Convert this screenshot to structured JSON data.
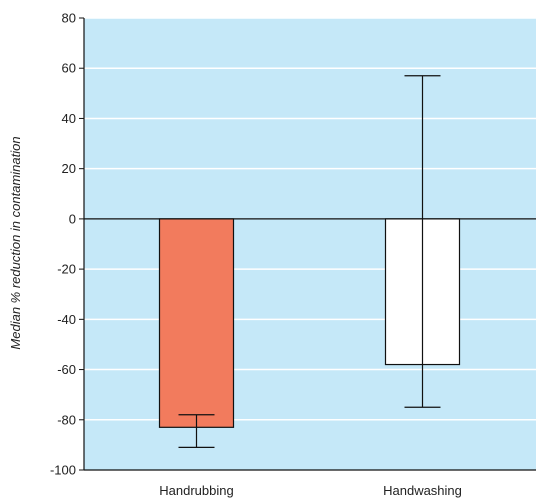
{
  "chart_data": {
    "type": "bar",
    "title": "",
    "xlabel": "",
    "ylabel": "Median % reduction in contamination",
    "categories": [
      "Handrubbing",
      "Handwashing"
    ],
    "values": [
      -83,
      -58
    ],
    "error_bars": [
      {
        "low": -91,
        "high": -78
      },
      {
        "low": -75,
        "high": 57
      }
    ],
    "ylim": [
      -100,
      80
    ],
    "yticks": [
      -100,
      -80,
      -60,
      -40,
      -20,
      0,
      20,
      40,
      60,
      80
    ],
    "grid": true,
    "legend": "none",
    "colors": {
      "background": "#c5e8f8",
      "grid": "#ffffff",
      "bars": [
        "#f27b5d",
        "#ffffff"
      ],
      "bar_stroke": "#111111",
      "axis": "#111111"
    }
  }
}
